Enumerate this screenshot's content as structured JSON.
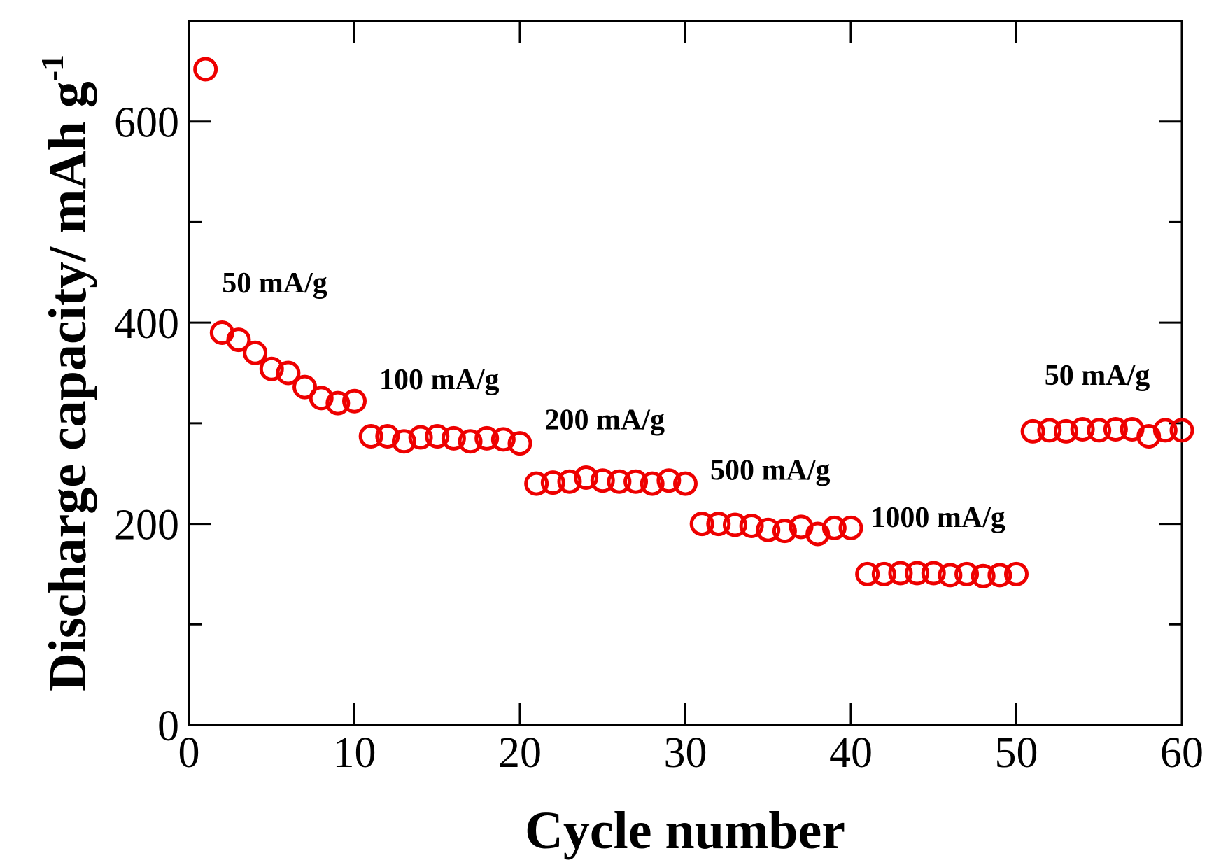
{
  "chart_data": {
    "type": "scatter",
    "xlabel": "Cycle number",
    "ylabel": "Discharge capacity/ mAh g",
    "ylabel_superscript": "-1",
    "xlim": [
      0,
      60
    ],
    "ylim": [
      0,
      700
    ],
    "x_ticks": [
      0,
      10,
      20,
      30,
      40,
      50,
      60
    ],
    "y_ticks": [
      0,
      200,
      400,
      600
    ],
    "y_minor_ticks": [
      100,
      300,
      500
    ],
    "grid": false,
    "marker": "open-circle",
    "marker_color": "#ee0000",
    "series": [
      {
        "name": "Discharge capacity",
        "x": [
          1,
          2,
          3,
          4,
          5,
          6,
          7,
          8,
          9,
          10,
          11,
          12,
          13,
          14,
          15,
          16,
          17,
          18,
          19,
          20,
          21,
          22,
          23,
          24,
          25,
          26,
          27,
          28,
          29,
          30,
          31,
          32,
          33,
          34,
          35,
          36,
          37,
          38,
          39,
          40,
          41,
          42,
          43,
          44,
          45,
          46,
          47,
          48,
          49,
          50,
          51,
          52,
          53,
          54,
          55,
          56,
          57,
          58,
          59,
          60
        ],
        "values": [
          652,
          390,
          383,
          370,
          354,
          350,
          336,
          325,
          320,
          322,
          287,
          287,
          282,
          286,
          287,
          285,
          282,
          285,
          284,
          280,
          240,
          241,
          242,
          246,
          243,
          242,
          242,
          240,
          243,
          240,
          200,
          200,
          199,
          198,
          194,
          193,
          197,
          190,
          196,
          196,
          150,
          150,
          151,
          151,
          151,
          149,
          150,
          148,
          149,
          150,
          292,
          293,
          292,
          294,
          293,
          294,
          294,
          287,
          293,
          293
        ]
      }
    ],
    "annotations": [
      {
        "text": "50 mA/g",
        "x": 2.0,
        "y": 430
      },
      {
        "text": "100 mA/g",
        "x": 11.5,
        "y": 334
      },
      {
        "text": "200 mA/g",
        "x": 21.5,
        "y": 294
      },
      {
        "text": "500 mA/g",
        "x": 31.5,
        "y": 244
      },
      {
        "text": "1000 mA/g",
        "x": 41.2,
        "y": 197
      },
      {
        "text": "50 mA/g",
        "x": 51.7,
        "y": 338
      }
    ]
  }
}
